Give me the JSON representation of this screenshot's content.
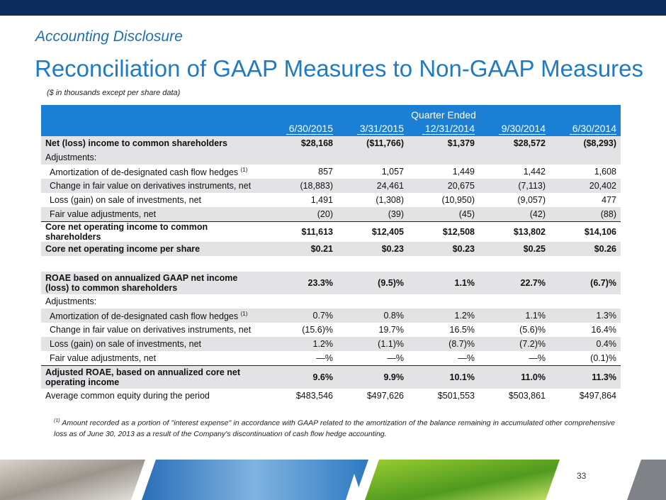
{
  "header": {
    "section": "Accounting Disclosure",
    "title": "Reconciliation of GAAP Measures to Non-GAAP Measures",
    "note": "($ in thousands except per share data)"
  },
  "table": {
    "group_header": "Quarter Ended",
    "columns": [
      "6/30/2015",
      "3/31/2015",
      "12/31/2014",
      "9/30/2014",
      "6/30/2014"
    ],
    "rows": [
      {
        "label": "Net (loss) income to common shareholders",
        "values": [
          "$28,168",
          "($11,766)",
          "$1,379",
          "$28,572",
          "($8,293)"
        ]
      },
      {
        "label": "Adjustments:",
        "values": []
      },
      {
        "label": "Amortization of de-designated cash flow hedges",
        "note": "(1)",
        "values": [
          "857",
          "1,057",
          "1,449",
          "1,442",
          "1,608"
        ]
      },
      {
        "label": "Change in fair value on derivatives instruments, net",
        "values": [
          "(18,883)",
          "24,461",
          "20,675",
          "(7,113)",
          "20,402"
        ]
      },
      {
        "label": "Loss (gain) on sale of investments, net",
        "values": [
          "1,491",
          "(1,308)",
          "(10,950)",
          "(9,057)",
          "477"
        ]
      },
      {
        "label": "Fair value adjustments, net",
        "values": [
          "(20)",
          "(39)",
          "(45)",
          "(42)",
          "(88)"
        ]
      },
      {
        "label": "Core net operating income to common shareholders",
        "values": [
          "$11,613",
          "$12,405",
          "$12,508",
          "$13,802",
          "$14,106"
        ]
      },
      {
        "label": "Core net operating income per share",
        "values": [
          "$0.21",
          "$0.23",
          "$0.23",
          "$0.25",
          "$0.26"
        ]
      },
      {
        "label": "ROAE based on annualized GAAP net income (loss) to common shareholders",
        "values": [
          "23.3%",
          "(9.5)%",
          "1.1%",
          "22.7%",
          "(6.7)%"
        ]
      },
      {
        "label": "Adjustments:",
        "values": []
      },
      {
        "label": "Amortization of de-designated cash flow hedges",
        "note": "(1)",
        "values": [
          "0.7%",
          "0.8%",
          "1.2%",
          "1.1%",
          "1.3%"
        ]
      },
      {
        "label": "Change in fair value on derivatives instruments, net",
        "values": [
          "(15.6)%",
          "19.7%",
          "16.5%",
          "(5.6)%",
          "16.4%"
        ]
      },
      {
        "label": "Loss (gain) on sale of investments, net",
        "values": [
          "1.2%",
          "(1.1)%",
          "(8.7)%",
          "(7.2)%",
          "0.4%"
        ]
      },
      {
        "label": "Fair value adjustments, net",
        "values": [
          "—%",
          "—%",
          "—%",
          "—%",
          "(0.1)%"
        ]
      },
      {
        "label": "Adjusted ROAE, based on annualized core net operating income",
        "values": [
          "9.6%",
          "9.9%",
          "10.1%",
          "11.0%",
          "11.3%"
        ]
      },
      {
        "label": "Average common equity during the period",
        "values": [
          "$483,546",
          "$497,626",
          "$501,553",
          "$503,861",
          "$497,864"
        ]
      }
    ]
  },
  "footnote": {
    "marker": "(1)",
    "text": "Amount recorded as a portion of \"interest expense\" in accordance with GAAP related to the amortization of the balance remaining in accumulated other comprehensive loss as of June 30, 2013 as a result of the Company's discontinuation of cash flow hedge accounting."
  },
  "page_number": "33"
}
